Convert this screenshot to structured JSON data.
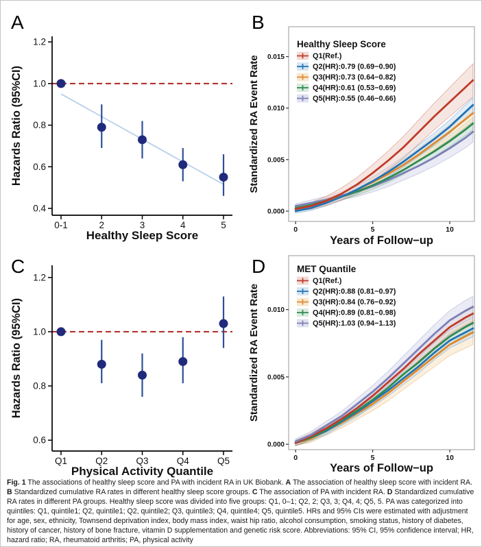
{
  "caption": {
    "segments": [
      {
        "t": "Fig. 1",
        "b": true
      },
      {
        "t": "  The associations of healthy sleep score and PA with incident RA in UK Biobank. ",
        "b": false
      },
      {
        "t": "A",
        "b": true
      },
      {
        "t": " The association of healthy sleep score with incident RA. ",
        "b": false
      },
      {
        "t": "B",
        "b": true
      },
      {
        "t": " Standardized cumulative RA rates in different healthy sleep score groups. ",
        "b": false
      },
      {
        "t": "C",
        "b": true
      },
      {
        "t": " The association of PA with incident RA. ",
        "b": false
      },
      {
        "t": "D",
        "b": true
      },
      {
        "t": " Standardized cumulative RA rates in different PA groups. Healthy sleep score was divided into five groups: Q1, 0–1; Q2, 2; Q3, 3; Q4, 4; Q5, 5. PA was categorized into quintiles: Q1, quintile1; Q2, quintile1; Q2, quintile2; Q3, quintile3; Q4, quintile4; Q5, quintile5. HRs and 95% CIs were estimated with adjustment for age, sex, ethnicity, Townsend deprivation index, body mass index, waist hip ratio, alcohol consumption, smoking status, history of diabetes, history of cancer, history of bone fracture, vitamin D supplementation and genetic risk score. Abbreviations: 95% CI, 95% confidence interval; HR, hazard ratio; RA, rheumatoid arthritis; PA, physical activity",
        "b": false
      }
    ]
  },
  "chart_data": [
    {
      "panel_label": "A",
      "type": "scatter",
      "xlabel": "Healthy Sleep Score",
      "ylabel": "Hazards Ratio (95%CI)",
      "categories": [
        "0-1",
        "2",
        "3",
        "4",
        "5"
      ],
      "hr": [
        1.0,
        0.79,
        0.73,
        0.61,
        0.55
      ],
      "ci_low": [
        1.0,
        0.69,
        0.64,
        0.53,
        0.46
      ],
      "ci_high": [
        1.0,
        0.9,
        0.82,
        0.69,
        0.66
      ],
      "yticks": [
        0.4,
        0.6,
        0.8,
        1.0,
        1.2
      ],
      "ytick_labels": [
        "0.4",
        "0.6",
        "0.8",
        "1.0",
        "1.2"
      ],
      "ylim": [
        0.367,
        1.227
      ],
      "refline": 1.0,
      "trend": {
        "start": 0.95,
        "end": 0.515
      },
      "point_color": "#202a7c",
      "ci_color": "#2d4f96",
      "ref_color": "#b1302c",
      "trend_color": "#b9cfec"
    },
    {
      "panel_label": "B",
      "type": "line",
      "legend_title": "Healthy Sleep Score",
      "xlabel": "Years of Follow−up",
      "ylabel": "Standardized RA Event Rate",
      "x": [
        0,
        1,
        2,
        3,
        4,
        5,
        6,
        7,
        8,
        9,
        10,
        11,
        11.5
      ],
      "xticks": [
        0,
        5,
        10
      ],
      "xlim": [
        -0.45,
        11.6
      ],
      "yticks": [
        0,
        0.005,
        0.01,
        0.015
      ],
      "ytick_labels": [
        "0.000",
        "0.005",
        "0.010",
        "0.015"
      ],
      "ylim": [
        -0.001,
        0.0179
      ],
      "draw_order": [
        4,
        3,
        2,
        1,
        0
      ],
      "series": [
        {
          "name": "Q1",
          "label": "Q1(Ref.)",
          "color": "#bf3b2b",
          "fill": "#efd2cb",
          "band_end": 0.0016,
          "y": [
            0.0002,
            0.0005,
            0.001,
            0.0017,
            0.0026,
            0.0037,
            0.0049,
            0.0062,
            0.0077,
            0.0092,
            0.0106,
            0.012,
            0.0127
          ]
        },
        {
          "name": "Q2",
          "label": "Q2(HR):0.79 (0.69−0.90)",
          "color": "#2273b5",
          "fill": "#cadff0",
          "band_end": 0.0007,
          "y": [
            0.0,
            0.0003,
            0.0008,
            0.0014,
            0.0021,
            0.0029,
            0.0038,
            0.0048,
            0.0059,
            0.007,
            0.0082,
            0.0096,
            0.0103
          ]
        },
        {
          "name": "Q3",
          "label": "Q3(HR):0.73 (0.64−0.82)",
          "color": "#e0892f",
          "fill": "#f7e1c2",
          "band_end": 0.0008,
          "y": [
            0.0002,
            0.0005,
            0.0009,
            0.0014,
            0.0021,
            0.0028,
            0.0036,
            0.0045,
            0.0055,
            0.0066,
            0.0077,
            0.0089,
            0.0095
          ]
        },
        {
          "name": "Q4",
          "label": "Q4(HR):0.61 (0.53−0.69)",
          "color": "#2e8b50",
          "fill": "#cfe5d5",
          "band_end": 0.0006,
          "y": [
            0.0003,
            0.0006,
            0.001,
            0.0014,
            0.0019,
            0.0025,
            0.0032,
            0.004,
            0.0049,
            0.0058,
            0.0068,
            0.0079,
            0.0085
          ]
        },
        {
          "name": "Q5",
          "label": "Q5(HR):0.55 (0.46−0.66)",
          "color": "#7b80b8",
          "fill": "#d9dbec",
          "band_end": 0.001,
          "y": [
            0.0005,
            0.0008,
            0.0011,
            0.0015,
            0.0019,
            0.0024,
            0.003,
            0.0037,
            0.0044,
            0.0052,
            0.0061,
            0.0071,
            0.0077
          ]
        }
      ]
    },
    {
      "panel_label": "C",
      "type": "scatter",
      "xlabel": "Physical Activity Quantile",
      "ylabel": "Hazards Ratio (95%CI)",
      "categories": [
        "Q1",
        "Q2",
        "Q3",
        "Q4",
        "Q5"
      ],
      "hr": [
        1.0,
        0.88,
        0.84,
        0.89,
        1.03
      ],
      "ci_low": [
        1.0,
        0.81,
        0.76,
        0.81,
        0.94
      ],
      "ci_high": [
        1.0,
        0.97,
        0.92,
        0.98,
        1.13
      ],
      "yticks": [
        0.6,
        0.8,
        1.0,
        1.2
      ],
      "ytick_labels": [
        "0.6",
        "0.8",
        "1.0",
        "1.2"
      ],
      "ylim": [
        0.56,
        1.245
      ],
      "refline": 1.0,
      "trend": null,
      "point_color": "#202a7c",
      "ci_color": "#2d4f96",
      "ref_color": "#b1302c",
      "trend_color": "#b9cfec"
    },
    {
      "panel_label": "D",
      "type": "line",
      "legend_title": "MET Quantile",
      "xlabel": "Years of Follow−up",
      "ylabel": "Standardized RA Event Rate",
      "x": [
        0,
        1,
        2,
        3,
        4,
        5,
        6,
        7,
        8,
        9,
        10,
        11,
        11.5
      ],
      "xticks": [
        0,
        5,
        10
      ],
      "xlim": [
        -0.45,
        11.6
      ],
      "yticks": [
        0,
        0.005,
        0.01
      ],
      "ytick_labels": [
        "0.000",
        "0.005",
        "0.010"
      ],
      "ylim": [
        -0.0004,
        0.014
      ],
      "draw_order": [
        2,
        1,
        3,
        0,
        4
      ],
      "series": [
        {
          "name": "Q1",
          "label": "Q1(Ref.)",
          "color": "#bf3b2b",
          "fill": "#efd2cb",
          "band_end": 0.0006,
          "y": [
            0.0001,
            0.0006,
            0.0012,
            0.0019,
            0.0027,
            0.0036,
            0.0046,
            0.0056,
            0.0067,
            0.0077,
            0.0087,
            0.0094,
            0.0097
          ]
        },
        {
          "name": "Q2",
          "label": "Q2(HR):0.88 (0.81−0.97)",
          "color": "#2273b5",
          "fill": "#cadff0",
          "band_end": 0.0006,
          "y": [
            0.0001,
            0.0005,
            0.001,
            0.0017,
            0.0024,
            0.0032,
            0.004,
            0.0049,
            0.0058,
            0.0068,
            0.0077,
            0.0083,
            0.0086
          ]
        },
        {
          "name": "Q3",
          "label": "Q3(HR):0.84 (0.76−0.92)",
          "color": "#e0892f",
          "fill": "#f7e1c2",
          "band_end": 0.0009,
          "y": [
            0.0001,
            0.0004,
            0.001,
            0.0016,
            0.0023,
            0.003,
            0.0038,
            0.0047,
            0.0056,
            0.0065,
            0.0074,
            0.008,
            0.0083
          ]
        },
        {
          "name": "Q4",
          "label": "Q4(HR):0.89 (0.81−0.98)",
          "color": "#2e8b50",
          "fill": "#cfe5d5",
          "band_end": 0.0006,
          "y": [
            0.0001,
            0.0005,
            0.0011,
            0.0018,
            0.0025,
            0.0033,
            0.0042,
            0.0052,
            0.0061,
            0.0071,
            0.008,
            0.0087,
            0.009
          ]
        },
        {
          "name": "Q5",
          "label": "Q5(HR):1.03 (0.94−1.13)",
          "color": "#7b80b8",
          "fill": "#d9dbec",
          "band_end": 0.0008,
          "y": [
            0.0002,
            0.0007,
            0.0014,
            0.0021,
            0.003,
            0.0039,
            0.0049,
            0.006,
            0.0071,
            0.0082,
            0.0092,
            0.0099,
            0.0102
          ]
        }
      ]
    }
  ]
}
